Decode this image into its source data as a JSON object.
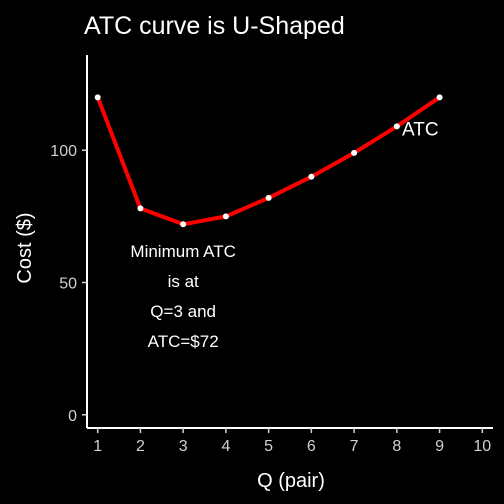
{
  "chart_data": {
    "type": "line",
    "title": "ATC curve is U-Shaped",
    "xlabel": "Q (pair)",
    "ylabel": "Cost ($)",
    "xlim": [
      0.75,
      10.25
    ],
    "ylim": [
      -5,
      136
    ],
    "x_ticks": [
      1,
      2,
      3,
      4,
      5,
      6,
      7,
      8,
      9,
      10
    ],
    "y_ticks": [
      0,
      50,
      100
    ],
    "grid": false,
    "series": [
      {
        "name": "ATC",
        "color": "#ff0000",
        "point_color": "#ffffff",
        "x": [
          1,
          2,
          3,
          4,
          5,
          6,
          7,
          8,
          9
        ],
        "y": [
          120,
          78,
          72,
          75,
          82,
          90,
          99,
          109,
          120
        ]
      }
    ],
    "annotations": [
      {
        "lines": [
          "Minimum ATC",
          "is at",
          "Q=3 and",
          "ATC=$72"
        ]
      }
    ]
  }
}
